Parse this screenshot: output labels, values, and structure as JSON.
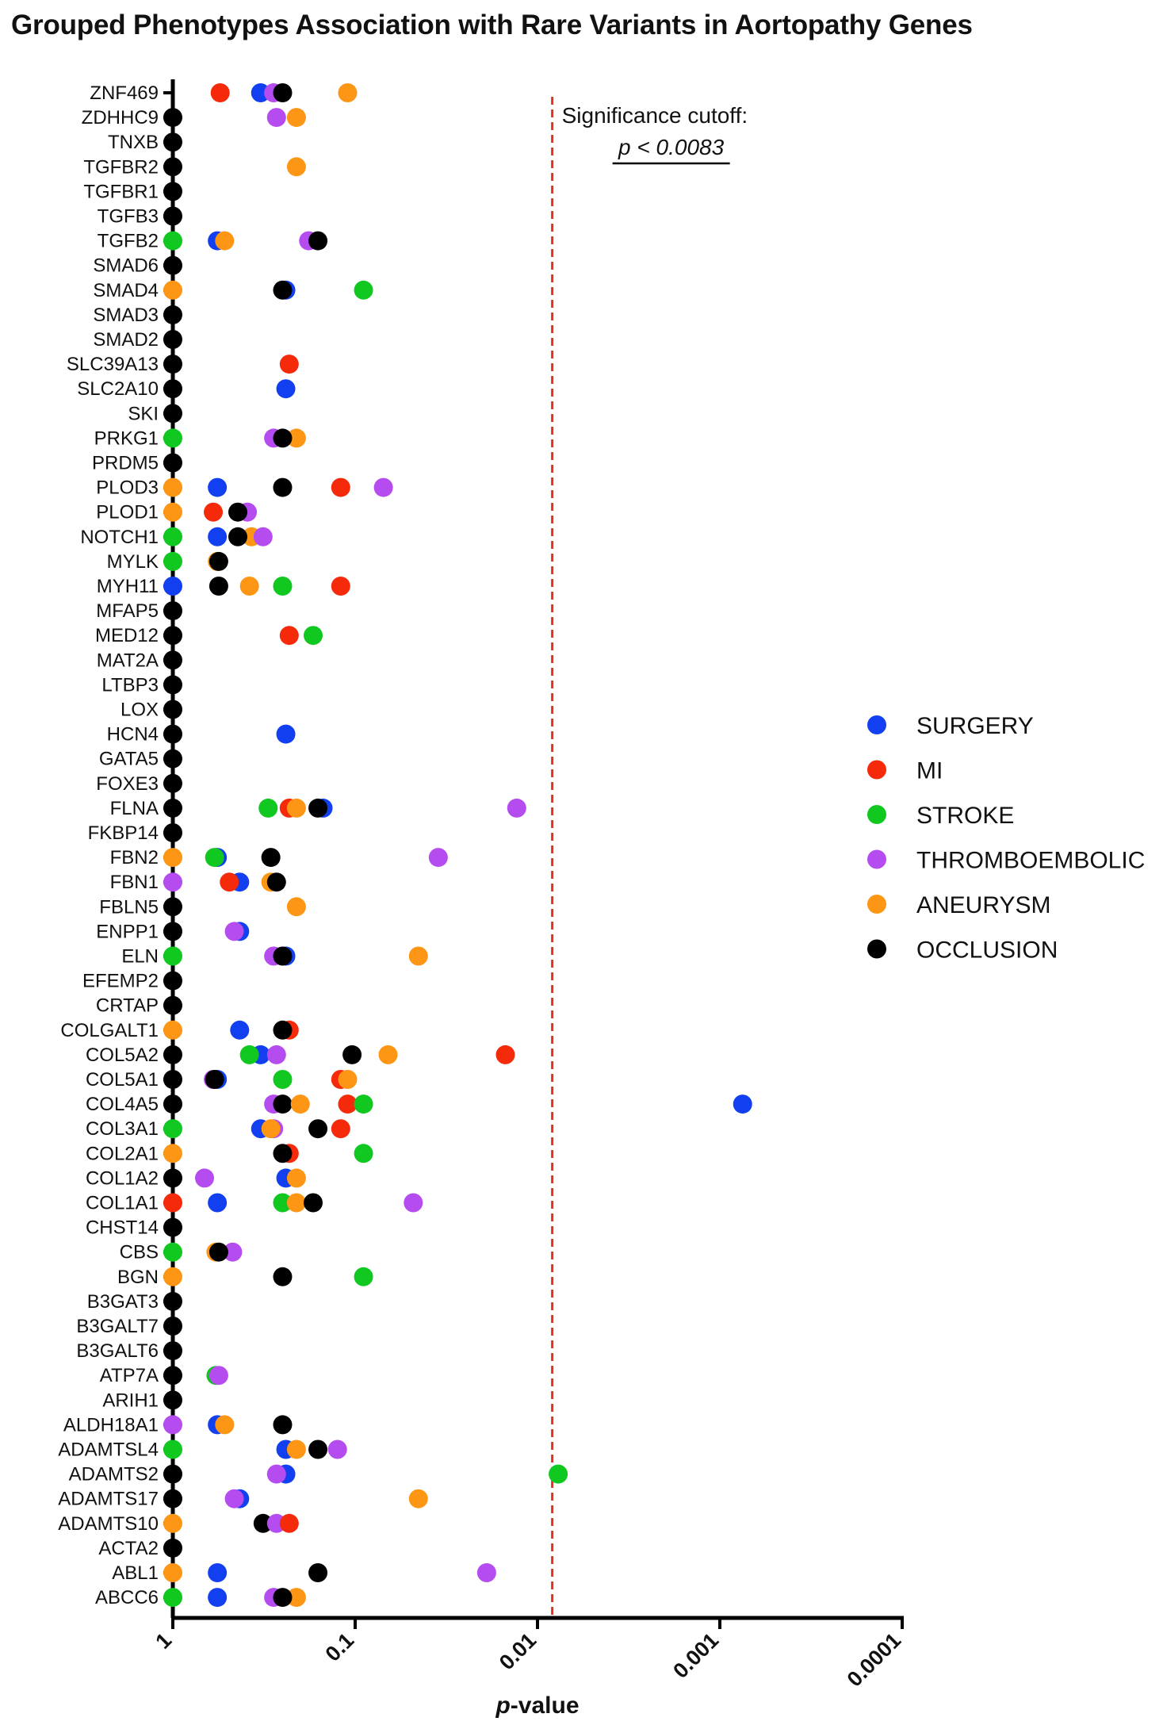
{
  "chart_data": {
    "type": "scatter",
    "title": "Grouped Phenotypes Association with Rare Variants in Aortopathy Genes",
    "xlabel_italic": "p",
    "xlabel_rest": "-value",
    "x_scale": "log-reversed",
    "xlim": [
      1,
      0.0001
    ],
    "x_ticks": [
      "1",
      "0.1",
      "0.01",
      "0.001",
      "0.0001"
    ],
    "significance": {
      "label": "Significance cutoff:",
      "value_label": "p < 0.0083",
      "value": 0.0083
    },
    "legend_position": "right",
    "series_colors": {
      "SURGERY": "#1240f0",
      "MI": "#f42a0a",
      "STROKE": "#10c820",
      "THROMBOEMBOLIC": "#b44cf0",
      "ANEURYSM": "#fc9614",
      "OCCLUSION": "#000000"
    },
    "series_order": [
      "SURGERY",
      "MI",
      "STROKE",
      "THROMBOEMBOLIC",
      "ANEURYSM",
      "OCCLUSION"
    ],
    "genes": [
      {
        "name": "ZNF469",
        "points": [
          [
            "MI",
            0.55
          ],
          [
            "SURGERY",
            0.33
          ],
          [
            "THROMBOEMBOLIC",
            0.28
          ],
          [
            "OCCLUSION",
            0.25
          ],
          [
            "ANEURYSM",
            0.11
          ]
        ]
      },
      {
        "name": "ZDHHC9",
        "points": [
          [
            "OCCLUSION",
            1
          ],
          [
            "THROMBOEMBOLIC",
            0.27
          ],
          [
            "ANEURYSM",
            0.21
          ]
        ]
      },
      {
        "name": "TNXB",
        "points": [
          [
            "OCCLUSION",
            1
          ]
        ]
      },
      {
        "name": "TGFBR2",
        "points": [
          [
            "OCCLUSION",
            1
          ],
          [
            "ANEURYSM",
            0.21
          ]
        ]
      },
      {
        "name": "TGFBR1",
        "points": [
          [
            "OCCLUSION",
            1
          ]
        ]
      },
      {
        "name": "TGFB3",
        "points": [
          [
            "OCCLUSION",
            1
          ]
        ]
      },
      {
        "name": "TGFB2",
        "points": [
          [
            "STROKE",
            1
          ],
          [
            "SURGERY",
            0.57
          ],
          [
            "ANEURYSM",
            0.52
          ],
          [
            "THROMBOEMBOLIC",
            0.18
          ],
          [
            "OCCLUSION",
            0.16
          ]
        ]
      },
      {
        "name": "SMAD6",
        "points": [
          [
            "OCCLUSION",
            1
          ]
        ]
      },
      {
        "name": "SMAD4",
        "points": [
          [
            "ANEURYSM",
            1
          ],
          [
            "SURGERY",
            0.24
          ],
          [
            "OCCLUSION",
            0.25
          ],
          [
            "STROKE",
            0.09
          ]
        ]
      },
      {
        "name": "SMAD3",
        "points": [
          [
            "OCCLUSION",
            1
          ]
        ]
      },
      {
        "name": "SMAD2",
        "points": [
          [
            "OCCLUSION",
            1
          ]
        ]
      },
      {
        "name": "SLC39A13",
        "points": [
          [
            "OCCLUSION",
            1
          ],
          [
            "MI",
            0.23
          ]
        ]
      },
      {
        "name": "SLC2A10",
        "points": [
          [
            "OCCLUSION",
            1
          ],
          [
            "SURGERY",
            0.24
          ]
        ]
      },
      {
        "name": "SKI",
        "points": [
          [
            "OCCLUSION",
            1
          ]
        ]
      },
      {
        "name": "PRKG1",
        "points": [
          [
            "STROKE",
            1
          ],
          [
            "THROMBOEMBOLIC",
            0.28
          ],
          [
            "ANEURYSM",
            0.21
          ],
          [
            "OCCLUSION",
            0.25
          ]
        ]
      },
      {
        "name": "PRDM5",
        "points": [
          [
            "OCCLUSION",
            1
          ]
        ]
      },
      {
        "name": "PLOD3",
        "points": [
          [
            "ANEURYSM",
            1
          ],
          [
            "SURGERY",
            0.57
          ],
          [
            "OCCLUSION",
            0.25
          ],
          [
            "MI",
            0.12
          ],
          [
            "THROMBOEMBOLIC",
            0.07
          ]
        ]
      },
      {
        "name": "PLOD1",
        "points": [
          [
            "ANEURYSM",
            1
          ],
          [
            "MI",
            0.6
          ],
          [
            "THROMBOEMBOLIC",
            0.39
          ],
          [
            "OCCLUSION",
            0.44
          ]
        ]
      },
      {
        "name": "NOTCH1",
        "points": [
          [
            "STROKE",
            1
          ],
          [
            "SURGERY",
            0.57
          ],
          [
            "ANEURYSM",
            0.37
          ],
          [
            "THROMBOEMBOLIC",
            0.32
          ],
          [
            "OCCLUSION",
            0.44
          ]
        ]
      },
      {
        "name": "MYLK",
        "points": [
          [
            "STROKE",
            1
          ],
          [
            "ANEURYSM",
            0.57
          ],
          [
            "OCCLUSION",
            0.56
          ]
        ]
      },
      {
        "name": "MYH11",
        "points": [
          [
            "SURGERY",
            1
          ],
          [
            "OCCLUSION",
            0.56
          ],
          [
            "ANEURYSM",
            0.38
          ],
          [
            "STROKE",
            0.25
          ],
          [
            "MI",
            0.12
          ]
        ]
      },
      {
        "name": "MFAP5",
        "points": [
          [
            "OCCLUSION",
            1
          ]
        ]
      },
      {
        "name": "MED12",
        "points": [
          [
            "OCCLUSION",
            1
          ],
          [
            "MI",
            0.23
          ],
          [
            "STROKE",
            0.17
          ]
        ]
      },
      {
        "name": "MAT2A",
        "points": [
          [
            "OCCLUSION",
            1
          ]
        ]
      },
      {
        "name": "LTBP3",
        "points": [
          [
            "OCCLUSION",
            1
          ]
        ]
      },
      {
        "name": "LOX",
        "points": [
          [
            "OCCLUSION",
            1
          ]
        ]
      },
      {
        "name": "HCN4",
        "points": [
          [
            "OCCLUSION",
            1
          ],
          [
            "SURGERY",
            0.24
          ]
        ]
      },
      {
        "name": "GATA5",
        "points": [
          [
            "OCCLUSION",
            1
          ]
        ]
      },
      {
        "name": "FOXE3",
        "points": [
          [
            "OCCLUSION",
            1
          ]
        ]
      },
      {
        "name": "FLNA",
        "points": [
          [
            "OCCLUSION",
            1
          ],
          [
            "STROKE",
            0.3
          ],
          [
            "MI",
            0.23
          ],
          [
            "ANEURYSM",
            0.21
          ],
          [
            "SURGERY",
            0.15
          ],
          [
            "OCCLUSION",
            0.16
          ],
          [
            "THROMBOEMBOLIC",
            0.013
          ]
        ]
      },
      {
        "name": "FKBP14",
        "points": [
          [
            "OCCLUSION",
            1
          ]
        ]
      },
      {
        "name": "FBN2",
        "points": [
          [
            "ANEURYSM",
            1
          ],
          [
            "SURGERY",
            0.57
          ],
          [
            "STROKE",
            0.59
          ],
          [
            "OCCLUSION",
            0.29
          ],
          [
            "THROMBOEMBOLIC",
            0.035
          ]
        ]
      },
      {
        "name": "FBN1",
        "points": [
          [
            "THROMBOEMBOLIC",
            1
          ],
          [
            "SURGERY",
            0.43
          ],
          [
            "MI",
            0.49
          ],
          [
            "ANEURYSM",
            0.29
          ],
          [
            "OCCLUSION",
            0.27
          ]
        ]
      },
      {
        "name": "FBLN5",
        "points": [
          [
            "OCCLUSION",
            1
          ],
          [
            "ANEURYSM",
            0.21
          ]
        ]
      },
      {
        "name": "ENPP1",
        "points": [
          [
            "OCCLUSION",
            1
          ],
          [
            "SURGERY",
            0.43
          ],
          [
            "THROMBOEMBOLIC",
            0.46
          ]
        ]
      },
      {
        "name": "ELN",
        "points": [
          [
            "STROKE",
            1
          ],
          [
            "THROMBOEMBOLIC",
            0.28
          ],
          [
            "SURGERY",
            0.24
          ],
          [
            "OCCLUSION",
            0.25
          ],
          [
            "ANEURYSM",
            0.045
          ]
        ]
      },
      {
        "name": "EFEMP2",
        "points": [
          [
            "OCCLUSION",
            1
          ]
        ]
      },
      {
        "name": "CRTAP",
        "points": [
          [
            "OCCLUSION",
            1
          ]
        ]
      },
      {
        "name": "COLGALT1",
        "points": [
          [
            "ANEURYSM",
            1
          ],
          [
            "SURGERY",
            0.43
          ],
          [
            "MI",
            0.23
          ],
          [
            "OCCLUSION",
            0.25
          ]
        ]
      },
      {
        "name": "COL5A2",
        "points": [
          [
            "OCCLUSION",
            1
          ],
          [
            "SURGERY",
            0.33
          ],
          [
            "STROKE",
            0.38
          ],
          [
            "THROMBOEMBOLIC",
            0.27
          ],
          [
            "OCCLUSION",
            0.104
          ],
          [
            "ANEURYSM",
            0.066
          ],
          [
            "MI",
            0.015
          ]
        ]
      },
      {
        "name": "COL5A1",
        "points": [
          [
            "OCCLUSION",
            1
          ],
          [
            "SURGERY",
            0.57
          ],
          [
            "THROMBOEMBOLIC",
            0.6
          ],
          [
            "OCCLUSION",
            0.59
          ],
          [
            "STROKE",
            0.25
          ],
          [
            "MI",
            0.12
          ],
          [
            "ANEURYSM",
            0.11
          ]
        ]
      },
      {
        "name": "COL4A5",
        "points": [
          [
            "OCCLUSION",
            1
          ],
          [
            "THROMBOEMBOLIC",
            0.28
          ],
          [
            "OCCLUSION",
            0.25
          ],
          [
            "ANEURYSM",
            0.2
          ],
          [
            "MI",
            0.11
          ],
          [
            "STROKE",
            0.09
          ],
          [
            "SURGERY",
            0.00075
          ]
        ]
      },
      {
        "name": "COL3A1",
        "points": [
          [
            "STROKE",
            1
          ],
          [
            "SURGERY",
            0.33
          ],
          [
            "THROMBOEMBOLIC",
            0.28
          ],
          [
            "ANEURYSM",
            0.29
          ],
          [
            "OCCLUSION",
            0.16
          ],
          [
            "MI",
            0.12
          ]
        ]
      },
      {
        "name": "COL2A1",
        "points": [
          [
            "ANEURYSM",
            1
          ],
          [
            "MI",
            0.23
          ],
          [
            "OCCLUSION",
            0.25
          ],
          [
            "STROKE",
            0.09
          ]
        ]
      },
      {
        "name": "COL1A2",
        "points": [
          [
            "OCCLUSION",
            1
          ],
          [
            "THROMBOEMBOLIC",
            0.67
          ],
          [
            "SURGERY",
            0.24
          ],
          [
            "ANEURYSM",
            0.21
          ]
        ]
      },
      {
        "name": "COL1A1",
        "points": [
          [
            "MI",
            1
          ],
          [
            "SURGERY",
            0.57
          ],
          [
            "STROKE",
            0.25
          ],
          [
            "ANEURYSM",
            0.21
          ],
          [
            "OCCLUSION",
            0.17
          ],
          [
            "THROMBOEMBOLIC",
            0.048
          ]
        ]
      },
      {
        "name": "CHST14",
        "points": [
          [
            "OCCLUSION",
            1
          ]
        ]
      },
      {
        "name": "CBS",
        "points": [
          [
            "STROKE",
            1
          ],
          [
            "ANEURYSM",
            0.58
          ],
          [
            "THROMBOEMBOLIC",
            0.47
          ],
          [
            "OCCLUSION",
            0.56
          ]
        ]
      },
      {
        "name": "BGN",
        "points": [
          [
            "ANEURYSM",
            1
          ],
          [
            "OCCLUSION",
            0.25
          ],
          [
            "STROKE",
            0.09
          ]
        ]
      },
      {
        "name": "B3GAT3",
        "points": [
          [
            "OCCLUSION",
            1
          ]
        ]
      },
      {
        "name": "B3GALT7",
        "points": [
          [
            "OCCLUSION",
            1
          ]
        ]
      },
      {
        "name": "B3GALT6",
        "points": [
          [
            "OCCLUSION",
            1
          ]
        ]
      },
      {
        "name": "ATP7A",
        "points": [
          [
            "OCCLUSION",
            1
          ],
          [
            "STROKE",
            0.58
          ],
          [
            "THROMBOEMBOLIC",
            0.56
          ]
        ]
      },
      {
        "name": "ARIH1",
        "points": [
          [
            "OCCLUSION",
            1
          ]
        ]
      },
      {
        "name": "ALDH18A1",
        "points": [
          [
            "THROMBOEMBOLIC",
            1
          ],
          [
            "SURGERY",
            0.57
          ],
          [
            "ANEURYSM",
            0.52
          ],
          [
            "OCCLUSION",
            0.25
          ]
        ]
      },
      {
        "name": "ADAMTSL4",
        "points": [
          [
            "STROKE",
            1
          ],
          [
            "SURGERY",
            0.24
          ],
          [
            "ANEURYSM",
            0.21
          ],
          [
            "OCCLUSION",
            0.16
          ],
          [
            "THROMBOEMBOLIC",
            0.125
          ]
        ]
      },
      {
        "name": "ADAMTS2",
        "points": [
          [
            "OCCLUSION",
            1
          ],
          [
            "SURGERY",
            0.24
          ],
          [
            "THROMBOEMBOLIC",
            0.27
          ],
          [
            "STROKE",
            0.0077
          ]
        ]
      },
      {
        "name": "ADAMTS17",
        "points": [
          [
            "OCCLUSION",
            1
          ],
          [
            "SURGERY",
            0.43
          ],
          [
            "THROMBOEMBOLIC",
            0.46
          ],
          [
            "ANEURYSM",
            0.045
          ]
        ]
      },
      {
        "name": "ADAMTS10",
        "points": [
          [
            "ANEURYSM",
            1
          ],
          [
            "OCCLUSION",
            0.32
          ],
          [
            "THROMBOEMBOLIC",
            0.27
          ],
          [
            "MI",
            0.23
          ]
        ]
      },
      {
        "name": "ACTA2",
        "points": [
          [
            "OCCLUSION",
            1
          ]
        ]
      },
      {
        "name": "ABL1",
        "points": [
          [
            "ANEURYSM",
            1
          ],
          [
            "SURGERY",
            0.57
          ],
          [
            "OCCLUSION",
            0.16
          ],
          [
            "THROMBOEMBOLIC",
            0.019
          ]
        ]
      },
      {
        "name": "ABCC6",
        "points": [
          [
            "STROKE",
            1
          ],
          [
            "SURGERY",
            0.57
          ],
          [
            "THROMBOEMBOLIC",
            0.28
          ],
          [
            "ANEURYSM",
            0.21
          ],
          [
            "OCCLUSION",
            0.25
          ]
        ]
      }
    ]
  }
}
